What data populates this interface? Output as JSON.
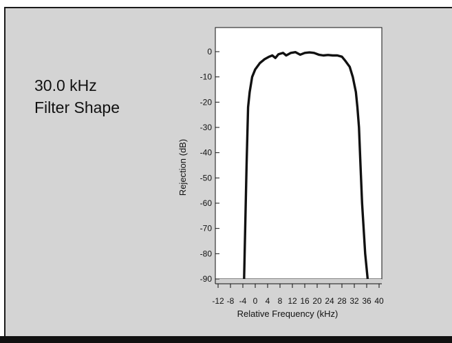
{
  "title": {
    "line1": "30.0 kHz",
    "line2": "Filter Shape"
  },
  "chart_data": {
    "type": "line",
    "xlabel": "Relative Frequency (kHz)",
    "ylabel": "Rejection (dB)",
    "xlim": [
      -12,
      40
    ],
    "ylim": [
      -90,
      0
    ],
    "x_ticks": [
      -12,
      -8,
      -4,
      0,
      4,
      8,
      12,
      16,
      20,
      24,
      28,
      32,
      36,
      40
    ],
    "y_ticks": [
      0,
      -10,
      -20,
      -30,
      -40,
      -50,
      -60,
      -70,
      -80,
      -90
    ],
    "x_tick_labels": [
      "-12",
      "-8",
      "-4",
      "0",
      "4",
      "8",
      "12",
      "16",
      "20",
      "24",
      "28",
      "32",
      "36",
      "40"
    ],
    "y_tick_labels": [
      "0",
      "-10",
      "-20",
      "-30",
      "-40",
      "-50",
      "-60",
      "-70",
      "-80",
      "-90"
    ],
    "grid": false,
    "series": [
      {
        "color": "#111111",
        "x": [
          -3.6,
          -2.8,
          -2.3,
          -1.8,
          -1.0,
          0.0,
          1.5,
          3.0,
          4.5,
          5.5,
          6.5,
          7.5,
          9.0,
          10.0,
          11.5,
          13.0,
          14.5,
          16.0,
          17.5,
          19.0,
          20.5,
          22.0,
          23.5,
          25.0,
          26.5,
          28.0,
          29.0,
          30.5,
          31.5,
          32.5,
          33.0,
          33.5,
          34.0,
          34.5,
          35.5,
          36.3
        ],
        "y": [
          -90,
          -45,
          -22,
          -16,
          -10,
          -7,
          -4.5,
          -3.0,
          -2.0,
          -1.5,
          -2.5,
          -1.0,
          -0.5,
          -1.5,
          -0.5,
          -0.2,
          -1.2,
          -0.5,
          -0.3,
          -0.5,
          -1.2,
          -1.5,
          -1.3,
          -1.5,
          -1.5,
          -2.0,
          -3.5,
          -6.0,
          -10.0,
          -16.0,
          -22.0,
          -30.0,
          -45.0,
          -60.0,
          -80.0,
          -90.0
        ]
      }
    ]
  }
}
